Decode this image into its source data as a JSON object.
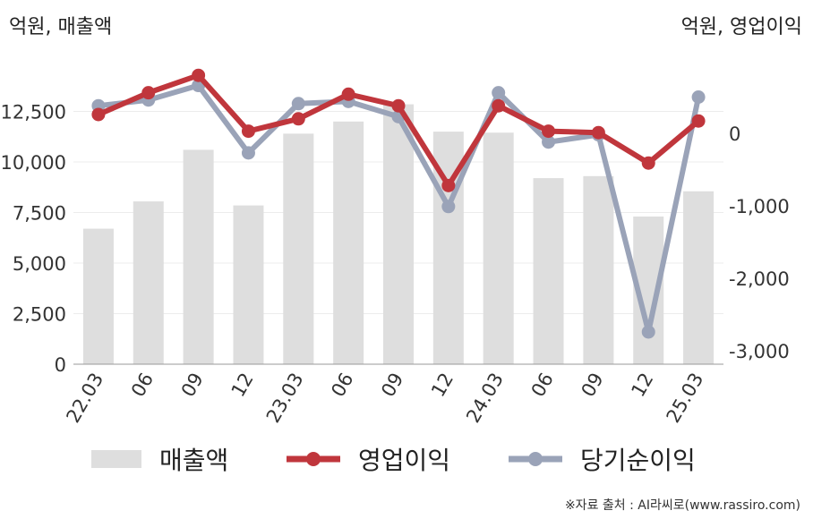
{
  "chart_data": {
    "type": "bar",
    "left_axis_unit": "억원, 매출액",
    "right_axis_unit": "억원, 영업이익",
    "categories": [
      "22.03",
      "06",
      "09",
      "12",
      "23.03",
      "06",
      "09",
      "12",
      "24.03",
      "06",
      "09",
      "12",
      "25.03"
    ],
    "left_axis": {
      "ylim": [
        0,
        15000
      ],
      "ticks": [
        "0",
        "2,500",
        "5,000",
        "7,500",
        "10,000",
        "12,500"
      ],
      "tick_values": [
        0,
        2500,
        5000,
        7500,
        10000,
        12500
      ]
    },
    "right_axis": {
      "ylim": [
        -3200,
        800
      ],
      "ticks": [
        "0",
        "-1,000",
        "-2,000",
        "-3,000"
      ],
      "tick_values": [
        0,
        -1000,
        -2000,
        -3000
      ]
    },
    "series": [
      {
        "name": "매출액",
        "kind": "bar",
        "axis": "left",
        "color": "#dedede",
        "values": [
          6700,
          8050,
          10600,
          7850,
          11400,
          12000,
          12850,
          11500,
          11450,
          9200,
          9300,
          7300,
          8550
        ]
      },
      {
        "name": "영업이익",
        "kind": "line",
        "axis": "right",
        "color": "#c0363c",
        "values": [
          260,
          560,
          800,
          30,
          200,
          540,
          380,
          -720,
          380,
          30,
          10,
          -410,
          170
        ]
      },
      {
        "name": "당기순이익",
        "kind": "line",
        "axis": "right",
        "color": "#9aa3b8",
        "values": [
          380,
          460,
          660,
          -270,
          410,
          440,
          230,
          -1010,
          560,
          -120,
          -20,
          -2740,
          500
        ]
      }
    ],
    "grid": true,
    "legend_position": "bottom"
  },
  "source_note": "※자료 출처 : AI라씨로(www.rassiro.com)"
}
